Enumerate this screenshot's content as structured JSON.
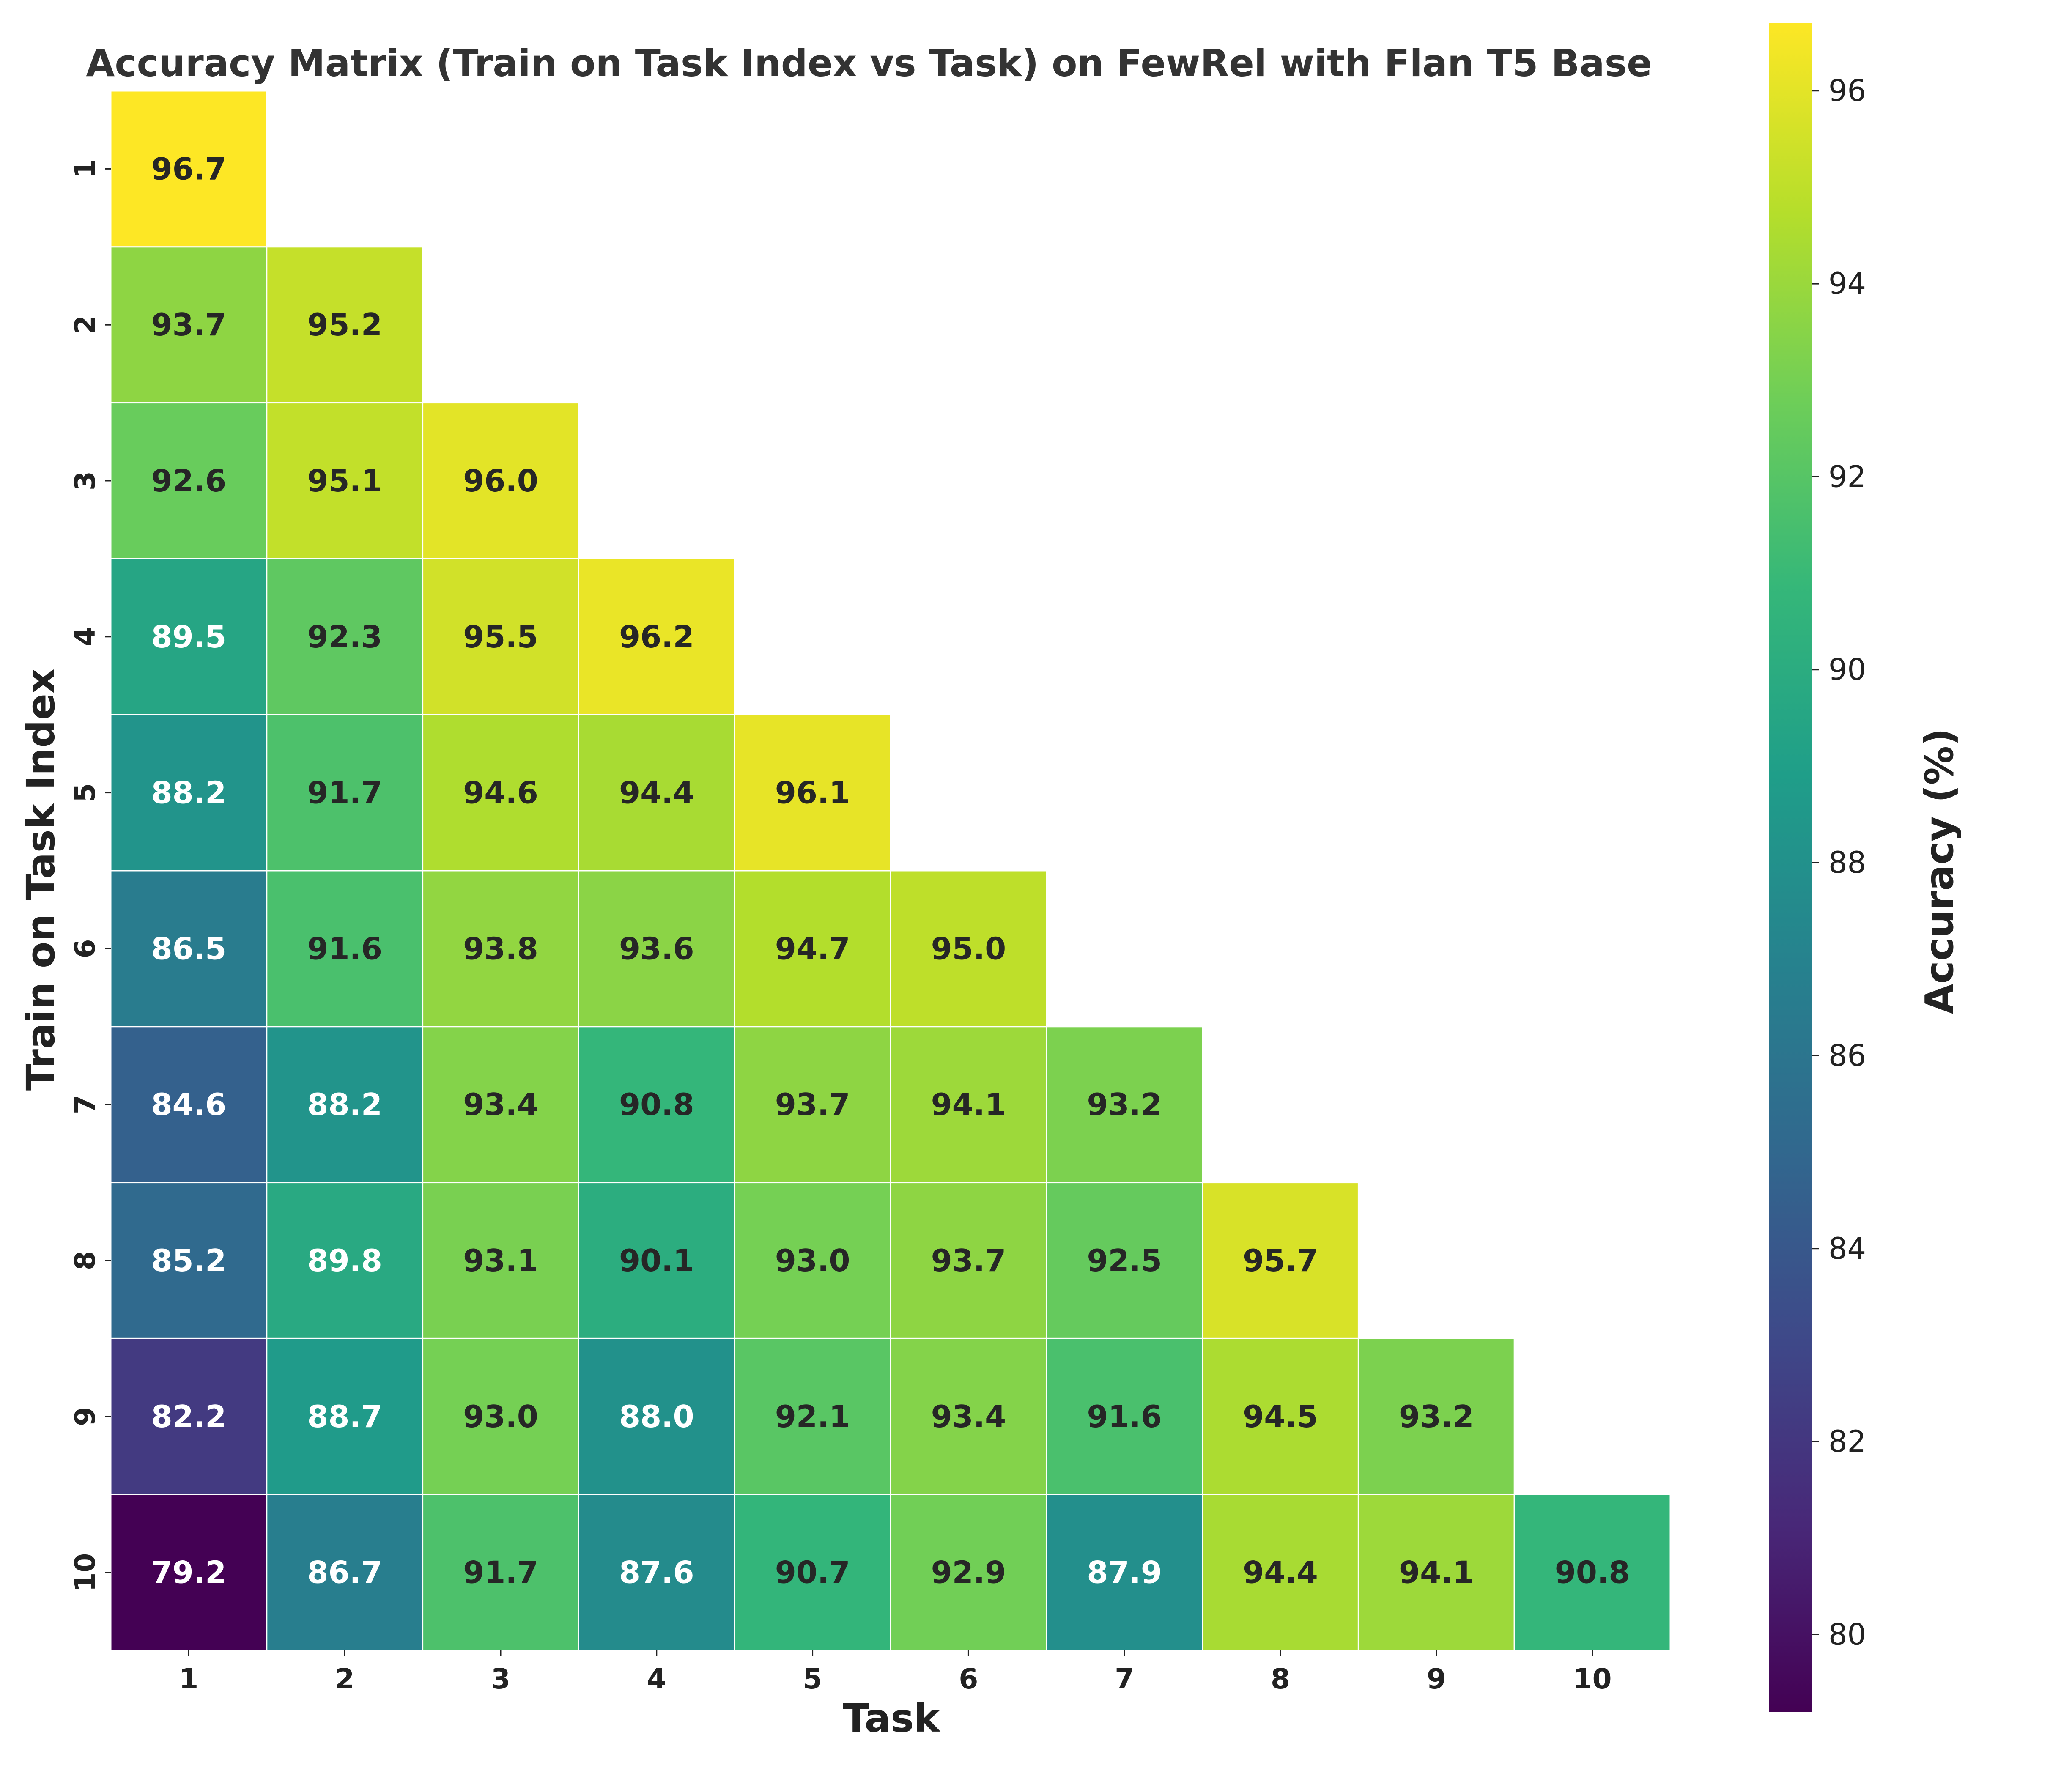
{
  "chart_data": {
    "type": "heatmap",
    "title": "Accuracy Matrix (Train on Task Index vs Task) on FewRel with Flan T5 Base",
    "xlabel": "Task",
    "ylabel": "Train on Task Index",
    "colorbar_label": "Accuracy (%)",
    "colormap": "viridis",
    "value_range": [
      79.2,
      96.7
    ],
    "colorbar_ticks": [
      80,
      82,
      84,
      86,
      88,
      90,
      92,
      94,
      96
    ],
    "x_categories": [
      "1",
      "2",
      "3",
      "4",
      "5",
      "6",
      "7",
      "8",
      "9",
      "10"
    ],
    "y_categories": [
      "1",
      "2",
      "3",
      "4",
      "5",
      "6",
      "7",
      "8",
      "9",
      "10"
    ],
    "matrix": [
      [
        96.7
      ],
      [
        93.7,
        95.2
      ],
      [
        92.6,
        95.1,
        96.0
      ],
      [
        89.5,
        92.3,
        95.5,
        96.2
      ],
      [
        88.2,
        91.7,
        94.6,
        94.4,
        96.1
      ],
      [
        86.5,
        91.6,
        93.8,
        93.6,
        94.7,
        95.0
      ],
      [
        84.6,
        88.2,
        93.4,
        90.8,
        93.7,
        94.1,
        93.2
      ],
      [
        85.2,
        89.8,
        93.1,
        90.1,
        93.0,
        93.7,
        92.5,
        95.7
      ],
      [
        82.2,
        88.7,
        93.0,
        88.0,
        92.1,
        93.4,
        91.6,
        94.5,
        93.2
      ],
      [
        79.2,
        86.7,
        91.7,
        87.6,
        90.7,
        92.9,
        87.9,
        94.4,
        94.1,
        90.8
      ]
    ],
    "cell_format": "0.0",
    "text_colors": {
      "light": "#ffffff",
      "dark": "#262626"
    }
  }
}
